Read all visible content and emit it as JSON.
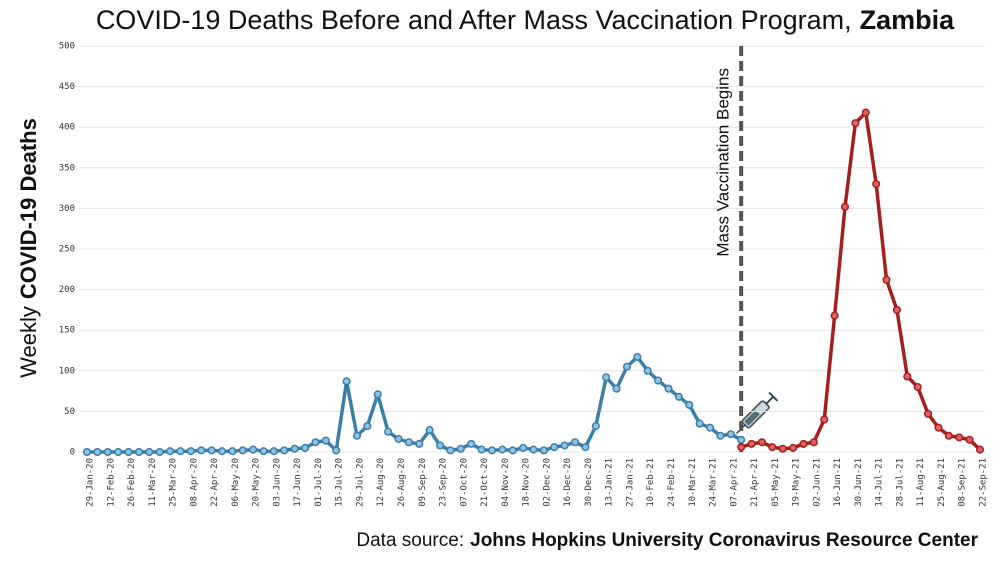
{
  "chart_data": {
    "type": "line",
    "title": "COVID-19 Deaths Before and After Mass Vaccination Program,",
    "title_country": "Zambia",
    "ylabel_prefix": "Weekly",
    "ylabel_bold": "COVID-19 Deaths",
    "annotation": "Mass Vaccination Begins",
    "source_prefix": "Data source:",
    "source_bold": "Johns Hopkins University Coronavirus Resource Center",
    "categories": [
      "29-Jan-20",
      null,
      "12-Feb-20",
      null,
      "26-Feb-20",
      null,
      "11-Mar-20",
      null,
      "25-Mar-20",
      null,
      "08-Apr-20",
      null,
      "22-Apr-20",
      null,
      "06-May-20",
      null,
      "20-May-20",
      null,
      "03-Jun-20",
      null,
      "17-Jun-20",
      null,
      "01-Jul-20",
      null,
      "15-Jul-20",
      null,
      "29-Jul-20",
      null,
      "12-Aug-20",
      null,
      "26-Aug-20",
      null,
      "09-Sep-20",
      null,
      "23-Sep-20",
      null,
      "07-Oct-20",
      null,
      "21-Oct-20",
      null,
      "04-Nov-20",
      null,
      "18-Nov-20",
      null,
      "02-Dec-20",
      null,
      "16-Dec-20",
      null,
      "30-Dec-20",
      null,
      "13-Jan-21",
      null,
      "27-Jan-21",
      null,
      "10-Feb-21",
      null,
      "24-Feb-21",
      null,
      "10-Mar-21",
      null,
      "24-Mar-21",
      null,
      "07-Apr-21",
      null,
      "21-Apr-21",
      null,
      "05-May-21",
      null,
      "19-May-21",
      null,
      "02-Jun-21",
      null,
      "16-Jun-21",
      null,
      "30-Jun-21",
      null,
      "14-Jul-21",
      null,
      "28-Jul-21",
      null,
      "11-Aug-21",
      null,
      "25-Aug-21",
      null,
      "08-Sep-21",
      null,
      "22-Sep-21"
    ],
    "series": [
      {
        "color": "#3b7fa9",
        "marker_fill": "#8fc4e2",
        "values": [
          0,
          0,
          0,
          0,
          0,
          0,
          0,
          0,
          1,
          1,
          1,
          2,
          2,
          1,
          1,
          2,
          3,
          1,
          1,
          2,
          4,
          5,
          12,
          14,
          2,
          87,
          20,
          32,
          71,
          25,
          16,
          12,
          10,
          27,
          8,
          2,
          4,
          10,
          3,
          2,
          3,
          2,
          5,
          3,
          2,
          6,
          8,
          12,
          6,
          32,
          92,
          78,
          105,
          117,
          100,
          88,
          78,
          68,
          58,
          35,
          30,
          20,
          22,
          15,
          null,
          null,
          null,
          null,
          null,
          null,
          null,
          null,
          null,
          null,
          null,
          null,
          null,
          null,
          null,
          null,
          null,
          null,
          null,
          null,
          null,
          null,
          null
        ]
      },
      {
        "color": "#a51f1f",
        "marker_fill": "#e06262",
        "values": [
          null,
          null,
          null,
          null,
          null,
          null,
          null,
          null,
          null,
          null,
          null,
          null,
          null,
          null,
          null,
          null,
          null,
          null,
          null,
          null,
          null,
          null,
          null,
          null,
          null,
          null,
          null,
          null,
          null,
          null,
          null,
          null,
          null,
          null,
          null,
          null,
          null,
          null,
          null,
          null,
          null,
          null,
          null,
          null,
          null,
          null,
          null,
          null,
          null,
          null,
          null,
          null,
          null,
          null,
          null,
          null,
          null,
          null,
          null,
          null,
          null,
          null,
          null,
          6,
          10,
          12,
          6,
          4,
          5,
          10,
          12,
          40,
          168,
          302,
          405,
          418,
          330,
          212,
          175,
          93,
          80,
          47,
          30,
          20,
          18,
          15,
          3
        ]
      }
    ],
    "ylim": [
      0,
      500
    ],
    "yticks": [
      0,
      50,
      100,
      150,
      200,
      250,
      300,
      350,
      400,
      450,
      500
    ],
    "grid": true
  }
}
